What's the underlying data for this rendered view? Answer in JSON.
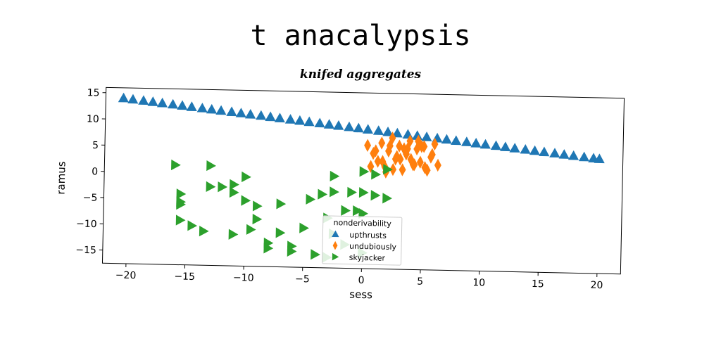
{
  "title": "t anacalypsis",
  "subtitle": "knifed aggregates",
  "chart_data": {
    "type": "scatter",
    "xlabel": "sess",
    "ylabel": "ramus",
    "xlim": [
      -22,
      22
    ],
    "ylim": [
      -17.5,
      16
    ],
    "xticks": [
      -20,
      -15,
      -10,
      -5,
      0,
      5,
      10,
      15,
      20
    ],
    "xtick_labels": [
      "−20",
      "−15",
      "−10",
      "−5",
      "0",
      "5",
      "10",
      "15",
      "20"
    ],
    "yticks": [
      -15,
      -10,
      -5,
      0,
      5,
      10,
      15
    ],
    "ytick_labels": [
      "−15",
      "−10",
      "−5",
      "0",
      "5",
      "10",
      "15"
    ],
    "grid": false,
    "legend": {
      "title": "nonderivability",
      "placement": "lower center"
    },
    "series": [
      {
        "name": "upthrusts",
        "marker": "triangle-up",
        "color": "#1f77b4",
        "x": [
          -20.5,
          -19.7,
          -18.8,
          -18.0,
          -17.2,
          -16.3,
          -15.5,
          -14.7,
          -13.8,
          -13.0,
          -12.2,
          -11.3,
          -10.5,
          -9.7,
          -8.8,
          -8.0,
          -7.2,
          -6.3,
          -5.5,
          -4.7,
          -3.8,
          -3.0,
          -2.2,
          -1.3,
          -0.5,
          0.3,
          1.2,
          2.0,
          2.8,
          3.7,
          4.5,
          5.3,
          6.2,
          7.0,
          7.8,
          8.7,
          9.5,
          10.3,
          11.2,
          12.0,
          12.8,
          13.7,
          14.5,
          15.3,
          16.2,
          17.0,
          17.8,
          18.7,
          19.5,
          20.0
        ],
        "y": [
          14.0,
          13.8,
          13.6,
          13.4,
          13.2,
          13.0,
          12.8,
          12.6,
          12.4,
          12.2,
          12.0,
          11.8,
          11.6,
          11.4,
          11.2,
          11.0,
          10.8,
          10.6,
          10.4,
          10.2,
          10.0,
          9.8,
          9.6,
          9.4,
          9.2,
          9.0,
          8.8,
          8.6,
          8.4,
          8.2,
          8.0,
          7.8,
          7.6,
          7.4,
          7.2,
          7.0,
          6.8,
          6.6,
          6.4,
          6.2,
          6.0,
          5.8,
          5.6,
          5.4,
          5.2,
          5.0,
          4.8,
          4.6,
          4.4,
          4.3
        ]
      },
      {
        "name": "undubiously",
        "marker": "thin-diamond",
        "color": "#ff7f0e",
        "x": [
          0.3,
          0.8,
          1.2,
          1.5,
          1.8,
          2.1,
          2.4,
          2.7,
          3.0,
          3.3,
          3.6,
          3.9,
          4.2,
          4.5,
          4.8,
          5.1,
          5.4,
          5.7,
          6.0,
          6.3,
          1.0,
          1.6,
          2.2,
          2.8,
          3.4,
          4.0,
          4.6,
          5.2,
          5.8,
          2.5,
          3.1,
          3.7,
          4.3,
          4.9,
          0.6,
          1.9
        ],
        "y": [
          6.0,
          4.5,
          3.0,
          6.5,
          2.0,
          5.0,
          7.5,
          3.5,
          6.0,
          1.5,
          4.5,
          7.0,
          2.5,
          5.5,
          3.0,
          6.0,
          1.5,
          4.0,
          6.5,
          2.5,
          5.0,
          3.0,
          6.0,
          4.0,
          5.5,
          3.5,
          7.0,
          2.0,
          4.5,
          1.5,
          3.5,
          5.5,
          2.5,
          6.0,
          2.0,
          1.0
        ]
      },
      {
        "name": "skyjacker",
        "marker": "triangle-right",
        "color": "#2ca02c",
        "x": [
          -16.0,
          -13.0,
          -15.5,
          -13.0,
          -12.0,
          -11.0,
          -10.0,
          -11.0,
          -10.0,
          -9.0,
          -15.5,
          -15.5,
          -9.0,
          -7.0,
          -4.5,
          -3.5,
          -2.5,
          -1.0,
          0.0,
          1.0,
          2.0,
          -2.5,
          -1.5,
          -0.5,
          0.0,
          1.0,
          0.0,
          2.0,
          -3.0,
          -15.5,
          -14.5,
          -13.5,
          -11.0,
          -9.5,
          -7.0,
          -5.0,
          -8.0,
          -8.0,
          -6.0,
          -6.0,
          -4.0,
          -3.0,
          -1.5,
          0.0,
          -2.5
        ],
        "y": [
          1.5,
          1.5,
          -4.0,
          -2.5,
          -2.5,
          -2.0,
          -0.5,
          -3.5,
          -5.0,
          -6.0,
          -5.5,
          -6.0,
          -8.5,
          -5.5,
          -4.5,
          -3.5,
          -3.0,
          -3.0,
          -3.0,
          0.5,
          1.5,
          0.0,
          -6.5,
          -6.5,
          -7.0,
          -3.5,
          1.0,
          -4.0,
          -8.0,
          -9.0,
          -10.0,
          -11.0,
          -11.5,
          -10.5,
          -11.0,
          -10.0,
          -13.0,
          -14.0,
          -13.5,
          -14.5,
          -15.0,
          -15.5,
          -13.0,
          -14.5,
          -11.0
        ]
      }
    ]
  }
}
